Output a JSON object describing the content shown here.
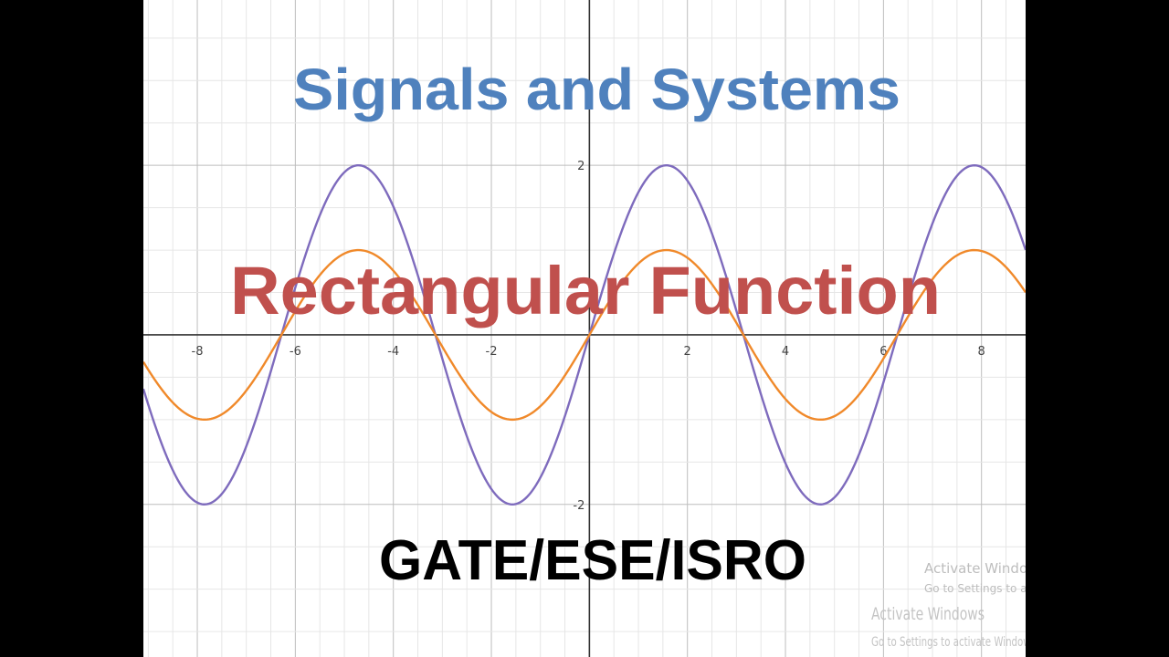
{
  "overlay": {
    "title": "Signals and Systems",
    "subtitle": "Rectangular Function",
    "footer": "GATE/ESE/ISRO",
    "title_color": "#4f81bd",
    "subtitle_color": "#c0504d",
    "footer_color": "#000000"
  },
  "watermark": {
    "line1a": "Activate Windows",
    "line1b": "Go to Settings to activate Windows",
    "line2a": "Activate Windows",
    "line2b": "Go to Settings to activate Windows"
  },
  "chart_data": {
    "type": "line",
    "title": "",
    "xlabel": "",
    "ylabel": "",
    "xlim": [
      -9.1,
      8.9
    ],
    "ylim": [
      -3.8,
      3.95
    ],
    "grid": true,
    "x_ticks": [
      -8,
      -6,
      -4,
      -2,
      2,
      4,
      6,
      8
    ],
    "y_ticks": [
      2,
      -2
    ],
    "series": [
      {
        "function": "2 sin(x)",
        "amplitude": 2,
        "color": "#7e6bbd"
      },
      {
        "function": "sin(x)",
        "amplitude": 1,
        "color": "#f0892a"
      }
    ]
  }
}
